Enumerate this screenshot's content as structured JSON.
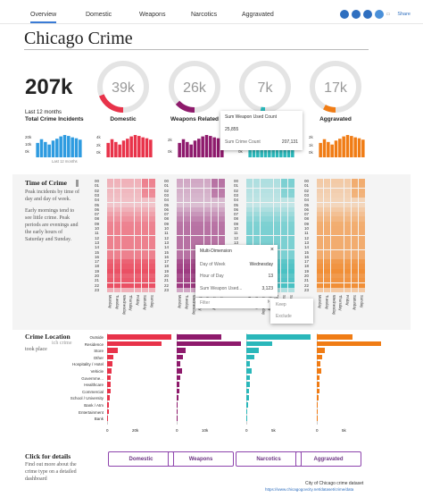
{
  "nav": {
    "tabs": [
      "Overview",
      "Domestic",
      "Weapons",
      "Narcotics",
      "Aggravated"
    ],
    "share": "Share",
    "icons": [
      "tableau-icon",
      "fullscreen-icon",
      "share-icon",
      "download-icon",
      "comment-icon"
    ]
  },
  "title": "Chicago Crime",
  "total": {
    "value": "207k",
    "period": "Last 12 months",
    "label": "Total Crime Incidents",
    "spark_note": "Last 12 months",
    "axis": [
      "20k",
      "10k",
      "0k"
    ]
  },
  "kpis": [
    {
      "value": "39k",
      "label": "Domestic",
      "color": "#e8334a",
      "fraction": 0.19,
      "axis": [
        "4k",
        "2k",
        "0k"
      ]
    },
    {
      "value": "26k",
      "label": "Weapons Related",
      "color": "#8e1a6c",
      "fraction": 0.13,
      "axis": [
        "2k",
        "0k"
      ]
    },
    {
      "value": "7k",
      "label": "Narcotics",
      "color": "#2ab7ba",
      "fraction": 0.03,
      "axis": [
        "1k",
        "0k"
      ]
    },
    {
      "value": "17k",
      "label": "Aggravated",
      "color": "#f07c15",
      "fraction": 0.08,
      "axis": [
        "2k",
        "1k",
        "0k"
      ]
    }
  ],
  "tooltip1": {
    "title": "Sum Weapon Used Count",
    "value1": "25,855",
    "label2": "Sum Crime Count",
    "value2": "207,131"
  },
  "time": {
    "heading": "Time of Crime",
    "text": "Peak incidents by time of day and day of week.",
    "text2": "Early mornings tend to see little crime.  Peak periods are evenings and the early hours of Saturday and Sunday.",
    "hours": [
      "00",
      "01",
      "02",
      "03",
      "04",
      "05",
      "06",
      "07",
      "08",
      "09",
      "10",
      "11",
      "12",
      "13",
      "14",
      "15",
      "16",
      "17",
      "18",
      "19",
      "20",
      "21",
      "22",
      "23"
    ],
    "days": [
      "Monday",
      "Tuesday",
      "Wednesday",
      "Thursday",
      "Friday",
      "Saturday",
      "Sunday"
    ]
  },
  "tooltip2": {
    "title": "Multi-Dimension",
    "rows": [
      [
        "Day of Week",
        "Wednesday"
      ],
      [
        "Hour of Day",
        "13"
      ],
      [
        "Sum Weapon Used...",
        "3,123"
      ]
    ],
    "menu": [
      "Filter",
      "Keep",
      "Exclude"
    ]
  },
  "location": {
    "heading": "Crime Location",
    "overlay": "ich crime",
    "text": "took place",
    "categories": [
      "Outside",
      "Residence",
      "Store",
      "Other",
      "Hospitality / Hotel",
      "Vehicle",
      "Governme...",
      "Healthcare",
      "Commercial",
      "School / University",
      "Bank / Atm",
      "Entertainment",
      "Bank"
    ],
    "axes": [
      [
        "0",
        "20k"
      ],
      [
        "0",
        "10k"
      ],
      [
        "0",
        "5k"
      ],
      [
        "0",
        "5k"
      ]
    ]
  },
  "details": {
    "heading": "Click for details",
    "text": "Find out more about the crime type on a detailed dashboard",
    "buttons": [
      "Domestic",
      "Weapons",
      "Narcotics",
      "Aggravated"
    ]
  },
  "footer": {
    "source": "City of Chicago crime dataset",
    "url": "https://www.chicagogovcity.net/dataset/crime/data"
  }
}
